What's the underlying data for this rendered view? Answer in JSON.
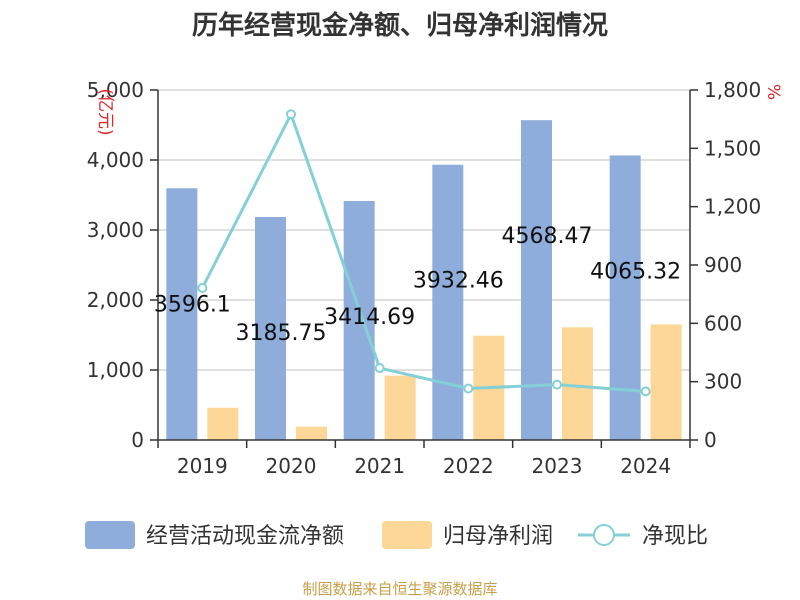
{
  "chart_data": {
    "type": "bar",
    "title": "历年经营现金净额、归母净利润情况",
    "categories": [
      "2019",
      "2020",
      "2021",
      "2022",
      "2023",
      "2024"
    ],
    "series": [
      {
        "name": "经营活动现金流净额",
        "type": "bar",
        "axis": "left",
        "color": "#8eaddb",
        "values": [
          3596.1,
          3185.75,
          3414.69,
          3932.46,
          4568.47,
          4065.32
        ],
        "labels": [
          "3596.1",
          "3185.75",
          "3414.69",
          "3932.46",
          "4568.47",
          "4065.32"
        ]
      },
      {
        "name": "归母净利润",
        "type": "bar",
        "axis": "left",
        "color": "#fdd797",
        "values": [
          460,
          190,
          920,
          1490,
          1610,
          1650
        ]
      },
      {
        "name": "净现比",
        "type": "line",
        "axis": "right",
        "color": "#84d0d6",
        "values": [
          782,
          1675,
          370,
          265,
          285,
          250
        ]
      }
    ],
    "y_left": {
      "unit": "亿元",
      "min": 0,
      "max": 5000,
      "ticks": [
        0,
        1000,
        2000,
        3000,
        4000,
        5000
      ],
      "tick_labels": [
        "0",
        "1,000",
        "2,000",
        "3,000",
        "4,000",
        "5,000"
      ]
    },
    "y_right": {
      "unit": "%",
      "min": 0,
      "max": 1800,
      "ticks": [
        0,
        300,
        600,
        900,
        1200,
        1500,
        1800
      ],
      "tick_labels": [
        "0",
        "300",
        "600",
        "900",
        "1,200",
        "1,500",
        "1,800"
      ]
    },
    "legend": [
      "经营活动现金流净额",
      "归母净利润",
      "净现比"
    ],
    "legend_position": "bottom",
    "grid": true,
    "source": "制图数据来自恒生聚源数据库"
  }
}
